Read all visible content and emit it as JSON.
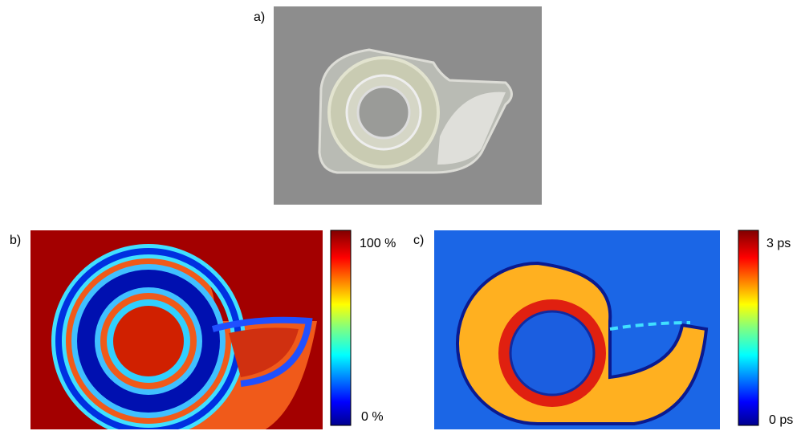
{
  "panels": [
    {
      "label": "a)"
    },
    {
      "label": "b)",
      "colorbar": {
        "top": "100 %",
        "bottom": "0 %"
      }
    },
    {
      "label": "c)",
      "colorbar": {
        "top": "3 ps",
        "bottom": "0 ps"
      }
    }
  ]
}
